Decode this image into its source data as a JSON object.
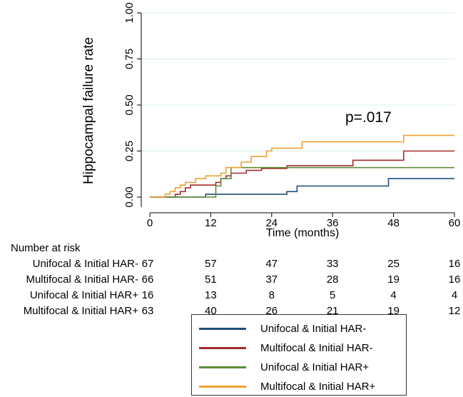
{
  "chart_data": {
    "type": "line",
    "ylabel": "Hippocampal failure rate",
    "xlabel": "Time (months)",
    "xlim": [
      0,
      60
    ],
    "ylim": [
      0,
      1
    ],
    "xticks": [
      "0",
      "12",
      "24",
      "36",
      "48",
      "60"
    ],
    "yticks": [
      "0.00",
      "0.25",
      "0.50",
      "0.75",
      "1.00"
    ],
    "annotation": "p=.017",
    "series": [
      {
        "name": "Unifocal & Initial HAR-",
        "color": "#1f4e79",
        "steps": [
          [
            0,
            0
          ],
          [
            11,
            0
          ],
          [
            11,
            0.015
          ],
          [
            27,
            0.015
          ],
          [
            27,
            0.03
          ],
          [
            29,
            0.03
          ],
          [
            29,
            0.06
          ],
          [
            47,
            0.06
          ],
          [
            47,
            0.1
          ],
          [
            60,
            0.1
          ]
        ]
      },
      {
        "name": "Multifocal & Initial HAR-",
        "color": "#a52a2a",
        "steps": [
          [
            0,
            0
          ],
          [
            5,
            0
          ],
          [
            5,
            0.015
          ],
          [
            6,
            0.015
          ],
          [
            6,
            0.03
          ],
          [
            7,
            0.03
          ],
          [
            7,
            0.05
          ],
          [
            8,
            0.05
          ],
          [
            8,
            0.065
          ],
          [
            13,
            0.065
          ],
          [
            13,
            0.08
          ],
          [
            14,
            0.08
          ],
          [
            14,
            0.1
          ],
          [
            15,
            0.1
          ],
          [
            15,
            0.115
          ],
          [
            16,
            0.115
          ],
          [
            16,
            0.13
          ],
          [
            19,
            0.13
          ],
          [
            19,
            0.145
          ],
          [
            22,
            0.145
          ],
          [
            22,
            0.155
          ],
          [
            27,
            0.155
          ],
          [
            27,
            0.17
          ],
          [
            40,
            0.17
          ],
          [
            40,
            0.2
          ],
          [
            50,
            0.2
          ],
          [
            50,
            0.25
          ],
          [
            60,
            0.25
          ]
        ]
      },
      {
        "name": "Unifocal & Initial HAR+",
        "color": "#5b8c3a",
        "steps": [
          [
            0,
            0
          ],
          [
            13,
            0
          ],
          [
            13,
            0.06
          ],
          [
            14,
            0.06
          ],
          [
            14,
            0.1
          ],
          [
            16,
            0.1
          ],
          [
            16,
            0.16
          ],
          [
            60,
            0.16
          ]
        ]
      },
      {
        "name": "Multifocal & Initial HAR+",
        "color": "#f0a030",
        "steps": [
          [
            0,
            0
          ],
          [
            3,
            0
          ],
          [
            3,
            0.015
          ],
          [
            4,
            0.015
          ],
          [
            4,
            0.03
          ],
          [
            5,
            0.03
          ],
          [
            5,
            0.05
          ],
          [
            6,
            0.05
          ],
          [
            6,
            0.065
          ],
          [
            7,
            0.065
          ],
          [
            7,
            0.08
          ],
          [
            9,
            0.08
          ],
          [
            9,
            0.1
          ],
          [
            11,
            0.1
          ],
          [
            11,
            0.115
          ],
          [
            14,
            0.115
          ],
          [
            14,
            0.13
          ],
          [
            15,
            0.13
          ],
          [
            15,
            0.16
          ],
          [
            18,
            0.16
          ],
          [
            18,
            0.19
          ],
          [
            20,
            0.19
          ],
          [
            20,
            0.22
          ],
          [
            23,
            0.22
          ],
          [
            23,
            0.25
          ],
          [
            24,
            0.25
          ],
          [
            24,
            0.265
          ],
          [
            30,
            0.265
          ],
          [
            30,
            0.3
          ],
          [
            50,
            0.3
          ],
          [
            50,
            0.335
          ],
          [
            60,
            0.335
          ]
        ]
      }
    ],
    "risk_table": {
      "title": "Number at risk",
      "rows": [
        {
          "label": "Unifocal & Initial HAR-",
          "values": [
            "67",
            "57",
            "47",
            "33",
            "25",
            "16"
          ]
        },
        {
          "label": "Multifocal & Initial HAR-",
          "values": [
            "66",
            "51",
            "37",
            "28",
            "19",
            "16"
          ]
        },
        {
          "label": "Unifocal & Initial HAR+",
          "values": [
            "16",
            "13",
            "8",
            "5",
            "4",
            "4"
          ]
        },
        {
          "label": "Multifocal & Initial HAR+",
          "values": [
            "63",
            "40",
            "26",
            "21",
            "19",
            "12"
          ]
        }
      ]
    }
  }
}
